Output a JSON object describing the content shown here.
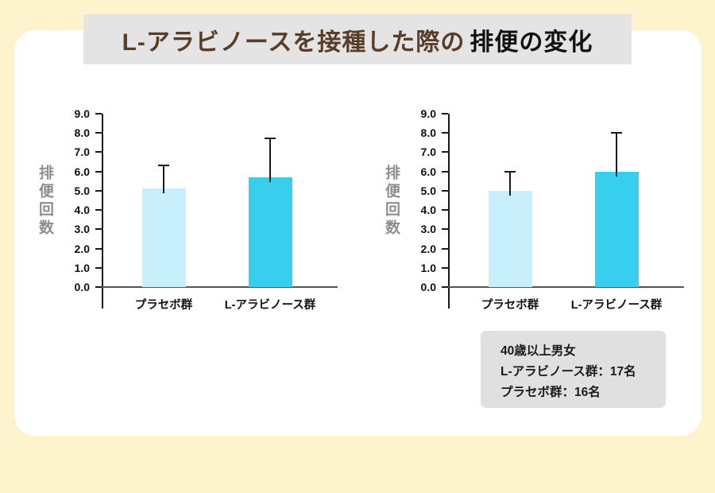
{
  "page": {
    "background_color": "#fdf3cc",
    "card_color": "#ffffff"
  },
  "title": {
    "part1": "L-アラビノースを接種した際の",
    "part2": "排便の変化",
    "part1_color": "#5a3d29",
    "part2_color": "#111111",
    "banner_color": "#e4e4e4"
  },
  "note": {
    "lines": [
      "40歳以上男女",
      "L-アラビノース群：17名",
      "プラセボ群：16名"
    ],
    "background_color": "#e0e0e0"
  },
  "chart_data": [
    {
      "type": "bar",
      "title": "",
      "categories": [
        "プラセボ群",
        "L-アラビノース群"
      ],
      "values": [
        5.1,
        5.7
      ],
      "error_top": [
        6.3,
        7.7
      ],
      "bar_colors": [
        "#c7effc",
        "#38cfee"
      ],
      "xlabel": "",
      "ylabel": "排便回数",
      "ylim": [
        0,
        9
      ],
      "yticks": [
        "0.0",
        "1.0",
        "2.0",
        "3.0",
        "4.0",
        "5.0",
        "6.0",
        "7.0",
        "8.0",
        "9.0"
      ],
      "grid": false,
      "legend": "none"
    },
    {
      "type": "bar",
      "title": "",
      "categories": [
        "プラセボ群",
        "L-アラビノース群"
      ],
      "values": [
        5.0,
        6.0
      ],
      "error_top": [
        6.0,
        8.0
      ],
      "bar_colors": [
        "#c7effc",
        "#38cfee"
      ],
      "xlabel": "",
      "ylabel": "排便回数",
      "ylim": [
        0,
        9
      ],
      "yticks": [
        "0.0",
        "1.0",
        "2.0",
        "3.0",
        "4.0",
        "5.0",
        "6.0",
        "7.0",
        "8.0",
        "9.0"
      ],
      "grid": false,
      "legend": "none"
    }
  ]
}
